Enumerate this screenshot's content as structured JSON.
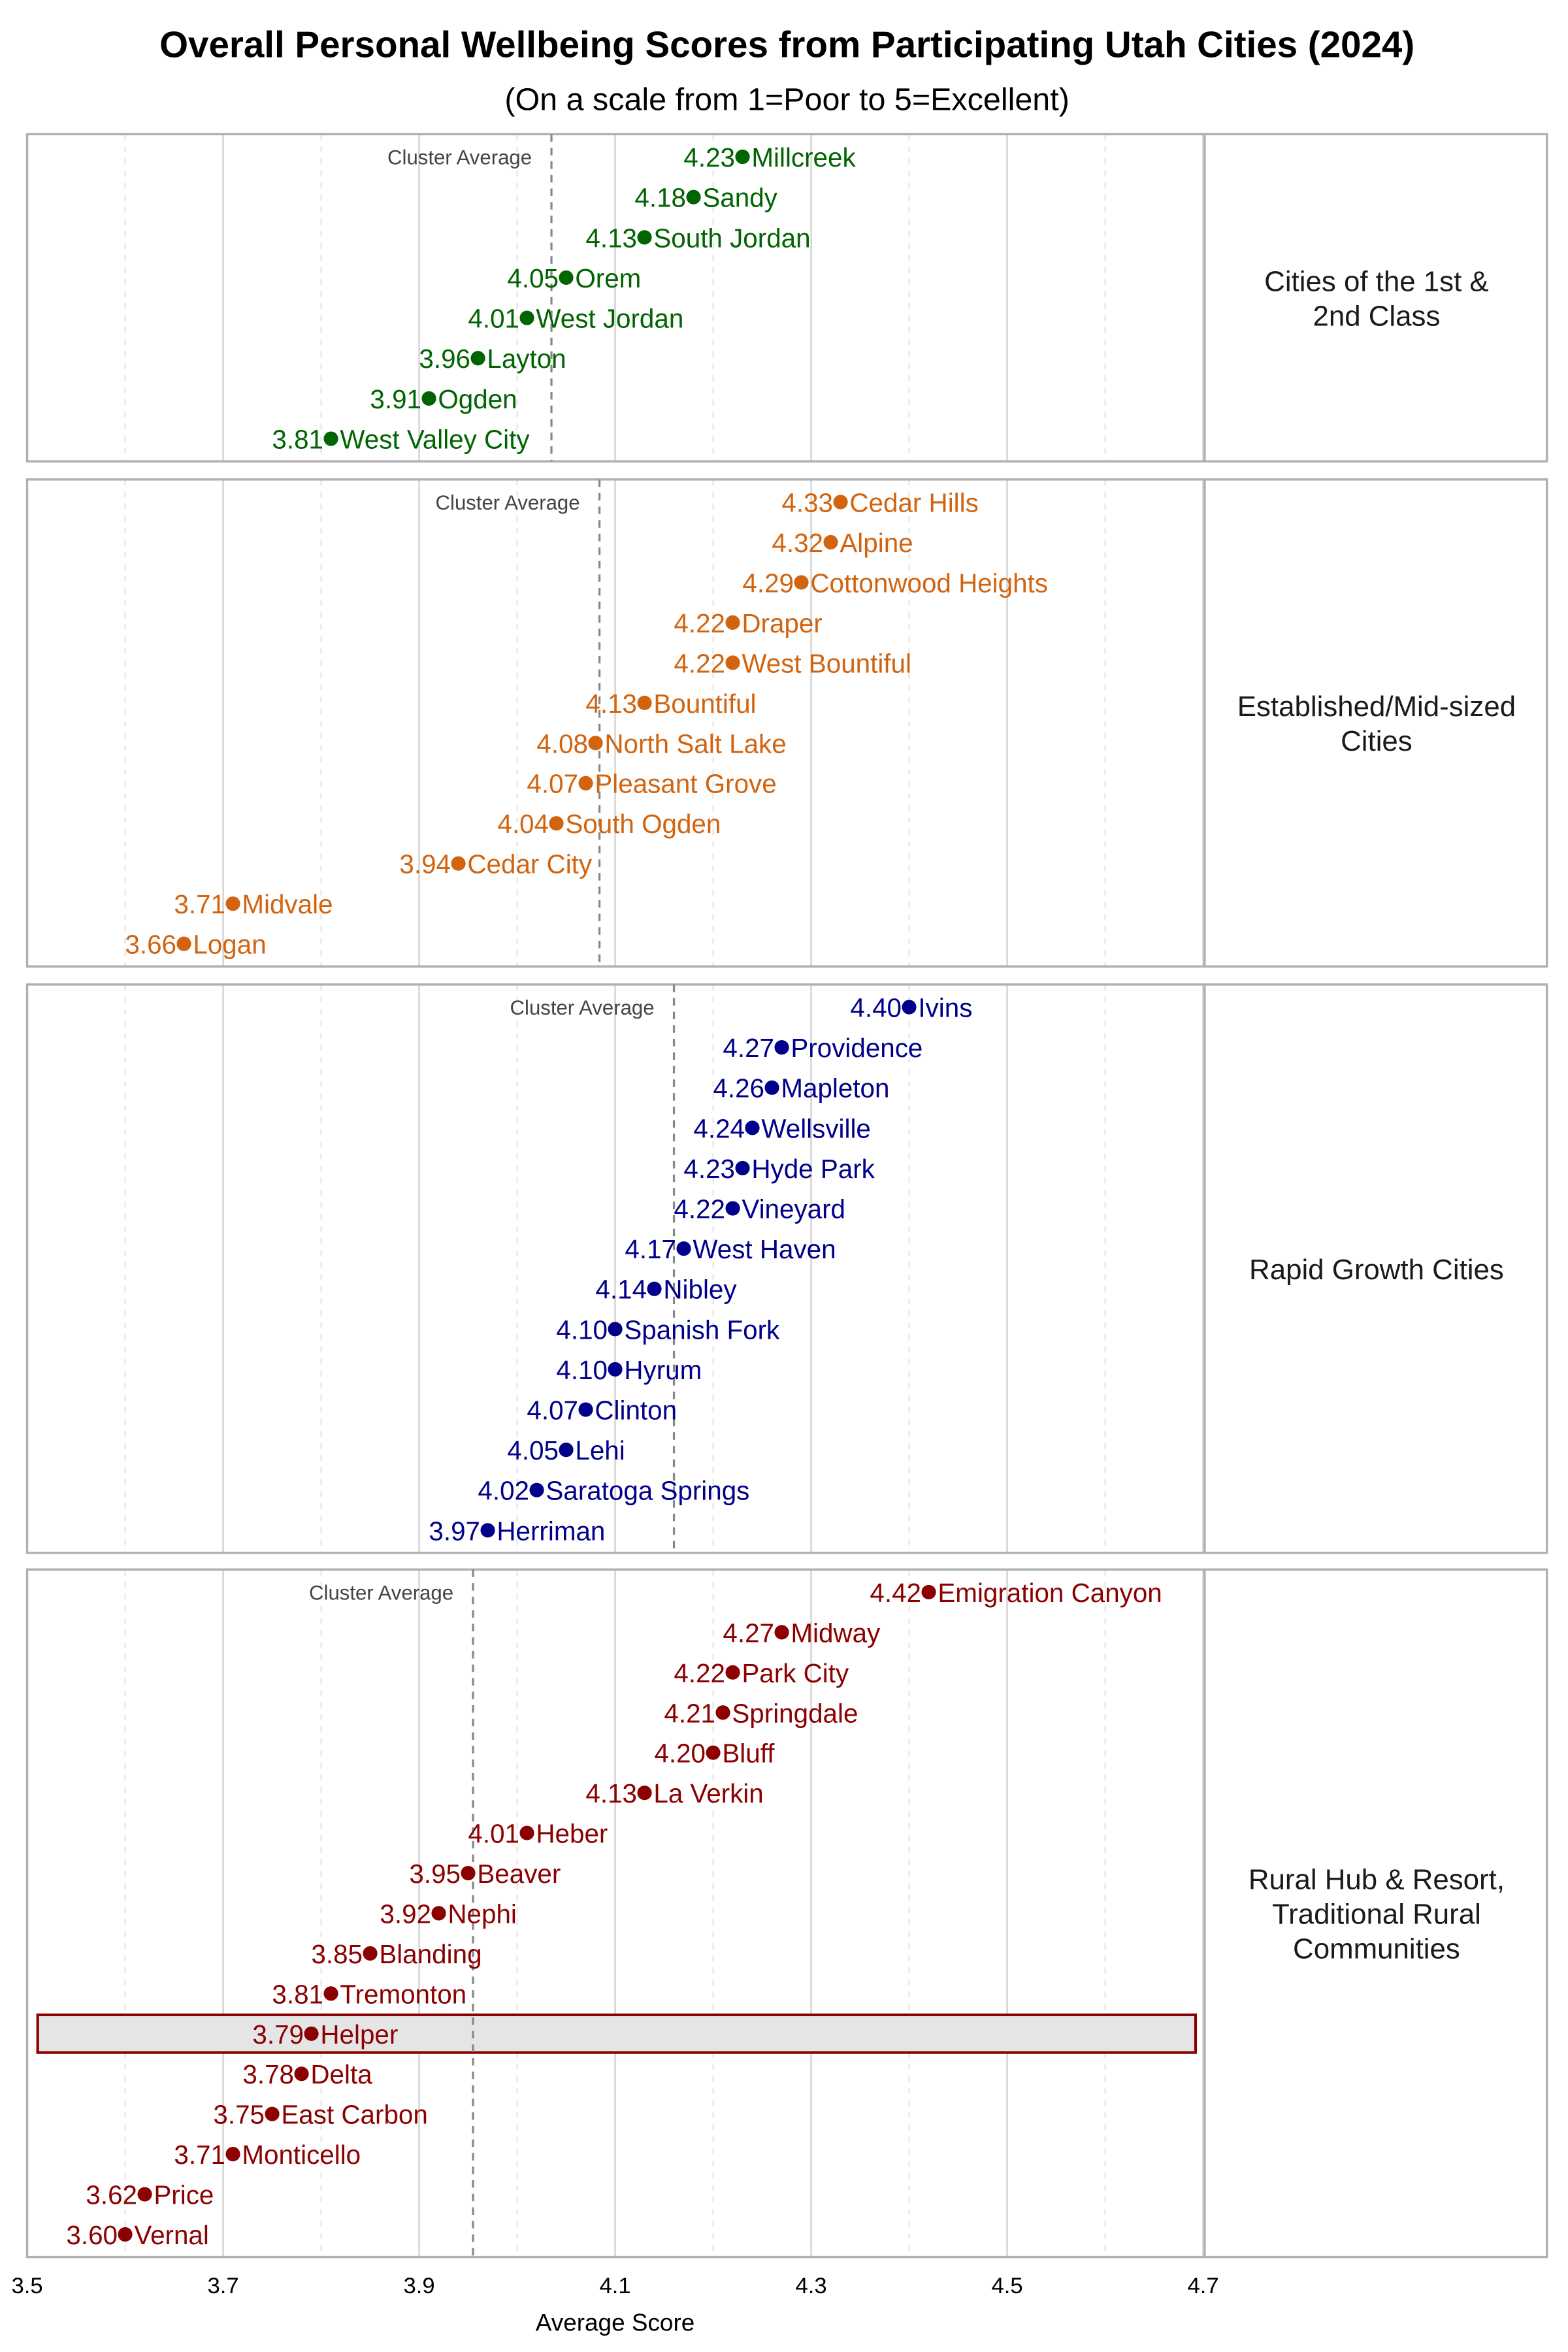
{
  "chart_data": {
    "type": "scatter",
    "title": "Overall Personal Wellbeing Scores from Participating Utah Cities (2024)",
    "subtitle": "(On a scale from 1=Poor to 5=Excellent)",
    "xlabel": "Average Score",
    "xlim": [
      3.5,
      4.7
    ],
    "xticks": [
      "3.5",
      "3.7",
      "3.9",
      "4.1",
      "4.3",
      "4.5",
      "4.7"
    ],
    "grid": true,
    "average_label": "Cluster Average",
    "highlight": "Helper",
    "panels": [
      {
        "name": "Cities of the 1st & 2nd Class",
        "strip_lines": [
          "Cities of the 1st &",
          "2nd Class"
        ],
        "color": "#006400",
        "average": 4.035,
        "points": [
          {
            "city": "Millcreek",
            "value": 4.23
          },
          {
            "city": "Sandy",
            "value": 4.18
          },
          {
            "city": "South Jordan",
            "value": 4.13
          },
          {
            "city": "Orem",
            "value": 4.05
          },
          {
            "city": "West Jordan",
            "value": 4.01
          },
          {
            "city": "Layton",
            "value": 3.96
          },
          {
            "city": "Ogden",
            "value": 3.91
          },
          {
            "city": "West Valley City",
            "value": 3.81
          }
        ]
      },
      {
        "name": "Established/Mid-sized Cities",
        "strip_lines": [
          "Established/Mid-sized",
          "Cities"
        ],
        "color": "#D2640F",
        "average": 4.084,
        "points": [
          {
            "city": "Cedar Hills",
            "value": 4.33
          },
          {
            "city": "Alpine",
            "value": 4.32
          },
          {
            "city": "Cottonwood Heights",
            "value": 4.29
          },
          {
            "city": "Draper",
            "value": 4.22
          },
          {
            "city": "West Bountiful",
            "value": 4.22
          },
          {
            "city": "Bountiful",
            "value": 4.13
          },
          {
            "city": "North Salt Lake",
            "value": 4.08
          },
          {
            "city": "Pleasant Grove",
            "value": 4.07
          },
          {
            "city": "South Ogden",
            "value": 4.04
          },
          {
            "city": "Cedar City",
            "value": 3.94
          },
          {
            "city": "Midvale",
            "value": 3.71
          },
          {
            "city": "Logan",
            "value": 3.66
          }
        ]
      },
      {
        "name": "Rapid Growth Cities",
        "strip_lines": [
          "Rapid Growth Cities"
        ],
        "color": "#00008B",
        "average": 4.16,
        "points": [
          {
            "city": "Ivins",
            "value": 4.4
          },
          {
            "city": "Providence",
            "value": 4.27
          },
          {
            "city": "Mapleton",
            "value": 4.26
          },
          {
            "city": "Wellsville",
            "value": 4.24
          },
          {
            "city": "Hyde Park",
            "value": 4.23
          },
          {
            "city": "Vineyard",
            "value": 4.22
          },
          {
            "city": "West Haven",
            "value": 4.17
          },
          {
            "city": "Nibley",
            "value": 4.14
          },
          {
            "city": "Spanish Fork",
            "value": 4.1
          },
          {
            "city": "Hyrum",
            "value": 4.1
          },
          {
            "city": "Clinton",
            "value": 4.07
          },
          {
            "city": "Lehi",
            "value": 4.05
          },
          {
            "city": "Saratoga Springs",
            "value": 4.02
          },
          {
            "city": "Herriman",
            "value": 3.97
          }
        ]
      },
      {
        "name": "Rural Hub & Resort, Traditional Rural Communities",
        "strip_lines": [
          "Rural Hub & Resort,",
          "Traditional Rural",
          "Communities"
        ],
        "color": "#8B0000",
        "average": 3.955,
        "points": [
          {
            "city": "Emigration Canyon",
            "value": 4.42
          },
          {
            "city": "Midway",
            "value": 4.27
          },
          {
            "city": "Park City",
            "value": 4.22
          },
          {
            "city": "Springdale",
            "value": 4.21
          },
          {
            "city": "Bluff",
            "value": 4.2
          },
          {
            "city": "La Verkin",
            "value": 4.13
          },
          {
            "city": "Heber",
            "value": 4.01
          },
          {
            "city": "Beaver",
            "value": 3.95
          },
          {
            "city": "Nephi",
            "value": 3.92
          },
          {
            "city": "Blanding",
            "value": 3.85
          },
          {
            "city": "Tremonton",
            "value": 3.81
          },
          {
            "city": "Helper",
            "value": 3.79
          },
          {
            "city": "Delta",
            "value": 3.78
          },
          {
            "city": "East Carbon",
            "value": 3.75
          },
          {
            "city": "Monticello",
            "value": 3.71
          },
          {
            "city": "Price",
            "value": 3.62
          },
          {
            "city": "Vernal",
            "value": 3.6
          }
        ]
      }
    ]
  }
}
